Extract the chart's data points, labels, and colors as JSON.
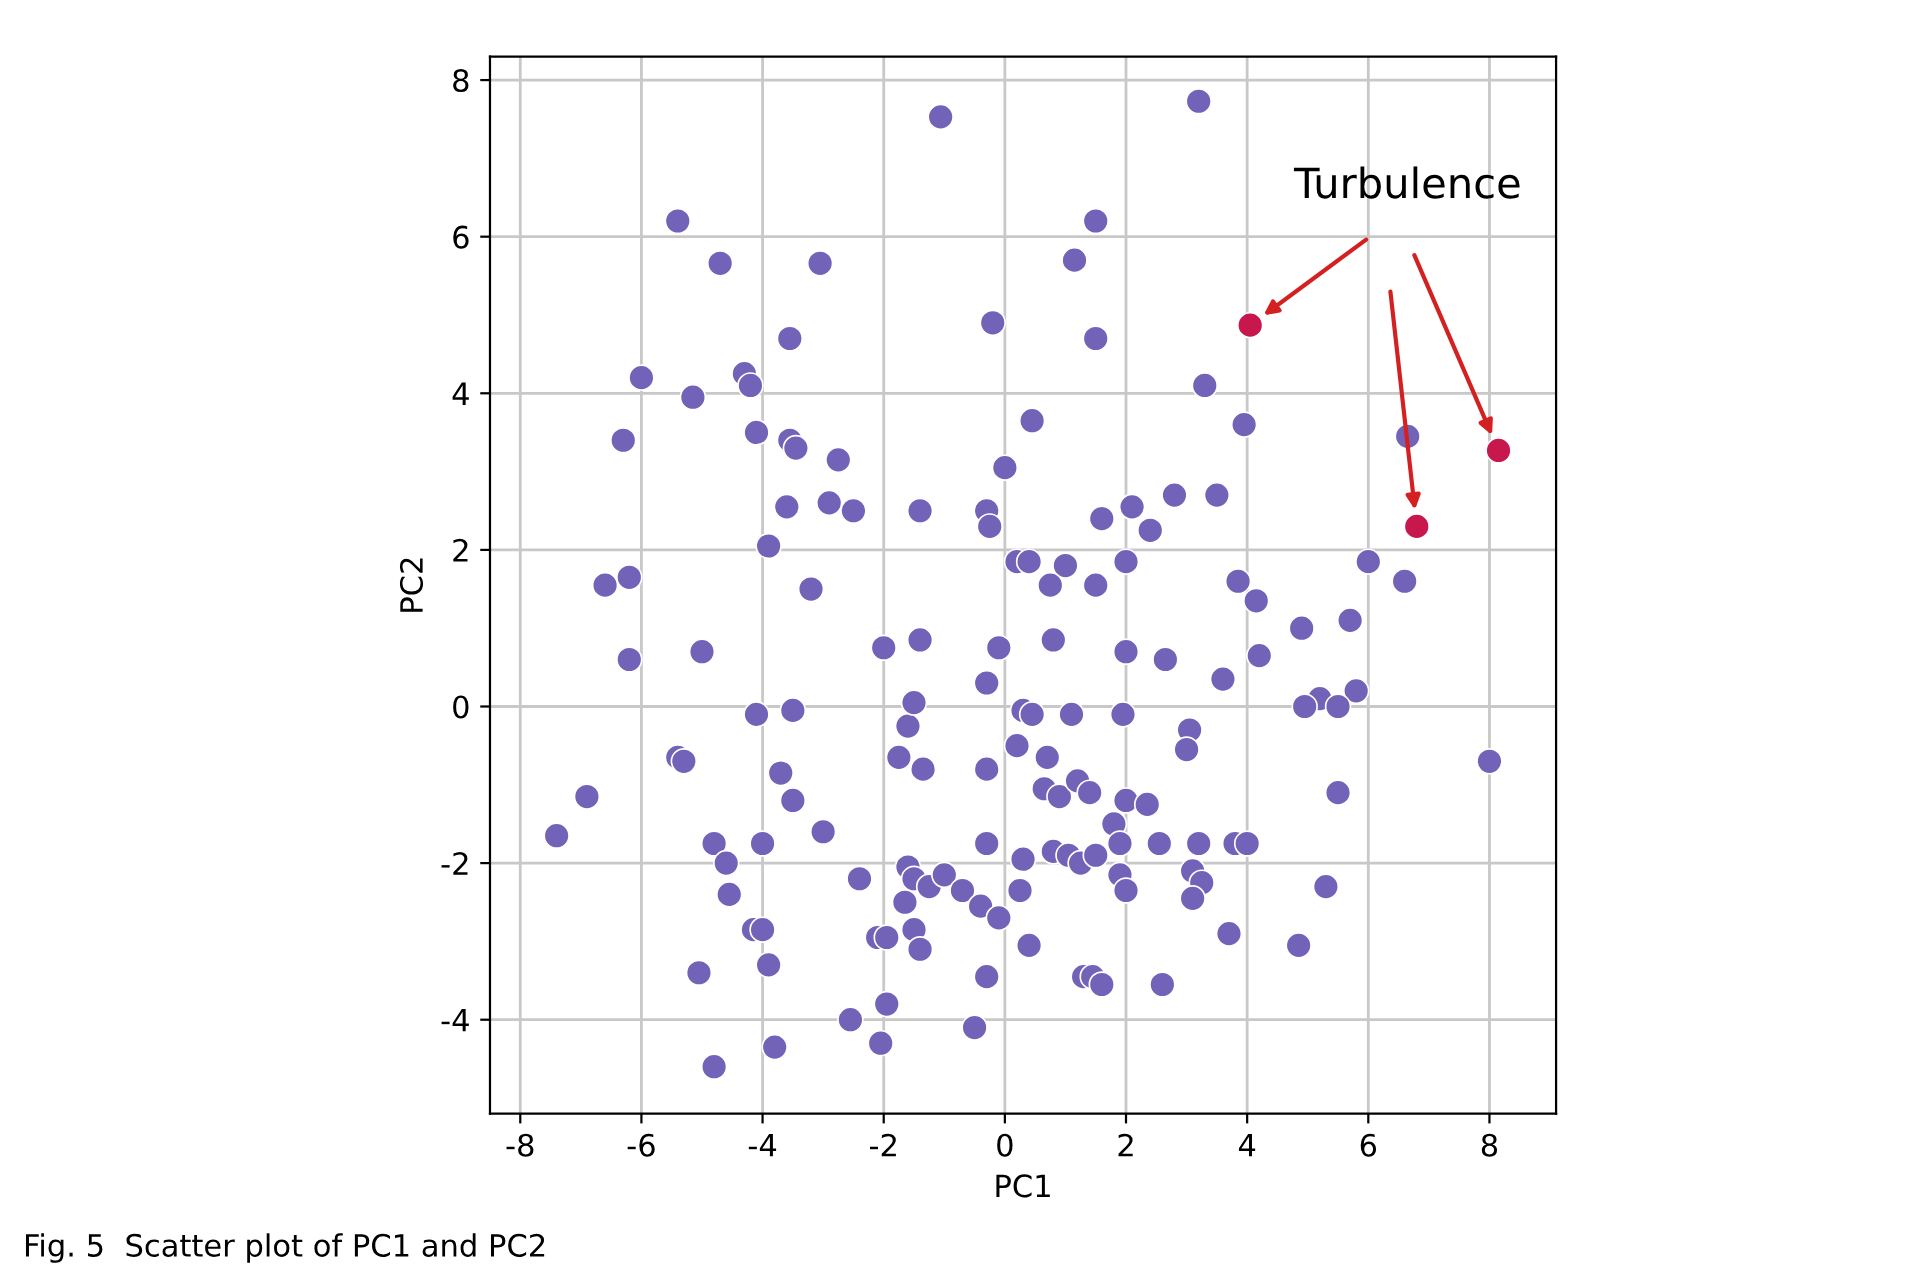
{
  "chart_data": {
    "type": "scatter",
    "xlabel": "PC1",
    "ylabel": "PC2",
    "xlim": [
      -8.5,
      9.1
    ],
    "ylim": [
      -5.2,
      8.3
    ],
    "xticks": [
      -8,
      -6,
      -4,
      -2,
      0,
      2,
      4,
      6,
      8
    ],
    "yticks": [
      -4,
      -2,
      0,
      2,
      4,
      6,
      8
    ],
    "grid": true,
    "legend": false,
    "marker": "circle",
    "annotations": [
      "Turbulence",
      "Fig. 5  Scatter plot of PC1 and PC2"
    ],
    "series": [
      {
        "color": "#7262b8",
        "x": [
          -1.06,
          3.2,
          -5.4,
          -4.7,
          -3.05,
          1.15,
          1.5,
          -0.2,
          1.5,
          -3.55,
          3.3,
          -6.0,
          -4.3,
          -4.2,
          -5.15,
          3.95,
          0.45,
          6.65,
          -6.3,
          -4.1,
          -3.55,
          -3.45,
          -2.75,
          0.0,
          3.5,
          2.8,
          -2.9,
          -2.5,
          -3.6,
          -1.4,
          -0.3,
          -0.25,
          2.1,
          2.4,
          1.6,
          -3.9,
          0.2,
          0.4,
          1.0,
          2.0,
          1.5,
          0.75,
          3.85,
          6.0,
          6.6,
          -6.6,
          -6.2,
          -3.2,
          4.15,
          5.7,
          4.9,
          -2.0,
          -1.4,
          -0.1,
          -6.2,
          -5.0,
          0.8,
          2.0,
          2.65,
          4.2,
          3.6,
          5.8,
          5.2,
          4.95,
          5.5,
          -1.6,
          -1.5,
          -0.3,
          -4.1,
          -3.5,
          0.3,
          0.45,
          1.1,
          1.95,
          -5.4,
          -5.3,
          -1.75,
          -1.35,
          -0.3,
          0.2,
          0.7,
          3.05,
          3.0,
          -3.7,
          8.0,
          -3.5,
          0.65,
          0.9,
          1.2,
          1.4,
          1.8,
          1.9,
          2.0,
          2.35,
          2.55,
          5.5,
          -4.8,
          -4.6,
          -4.0,
          -3.0,
          -1.6,
          -1.5,
          -1.25,
          -1.0,
          -0.3,
          -0.7,
          0.3,
          0.8,
          1.05,
          1.25,
          1.5,
          1.9,
          3.2,
          3.8,
          4.0,
          3.1,
          3.25,
          -4.55,
          -2.4,
          -1.65,
          -0.4,
          0.25,
          2.0,
          3.1,
          5.3,
          -4.15,
          -4.0,
          -2.1,
          -1.95,
          -1.5,
          -1.4,
          -0.1,
          0.4,
          3.7,
          4.85,
          -3.9,
          -5.05,
          -0.3,
          1.3,
          1.45,
          1.6,
          2.6,
          -1.95,
          -2.55,
          -0.5,
          -3.8,
          -2.05,
          -4.8,
          -7.4,
          -6.9
        ],
        "values": [
          7.53,
          7.73,
          6.2,
          5.66,
          5.66,
          5.7,
          6.2,
          4.9,
          4.7,
          4.7,
          4.1,
          4.2,
          4.25,
          4.1,
          3.95,
          3.6,
          3.65,
          3.45,
          3.4,
          3.5,
          3.4,
          3.3,
          3.15,
          3.05,
          2.7,
          2.7,
          2.6,
          2.5,
          2.55,
          2.5,
          2.5,
          2.3,
          2.55,
          2.25,
          2.4,
          2.05,
          1.85,
          1.85,
          1.8,
          1.85,
          1.55,
          1.55,
          1.6,
          1.85,
          1.6,
          1.55,
          1.65,
          1.5,
          1.35,
          1.1,
          1.0,
          0.75,
          0.85,
          0.75,
          0.6,
          0.7,
          0.85,
          0.7,
          0.6,
          0.65,
          0.35,
          0.2,
          0.1,
          0.0,
          0.0,
          -0.25,
          0.05,
          0.3,
          -0.1,
          -0.05,
          -0.05,
          -0.1,
          -0.1,
          -0.1,
          -0.65,
          -0.7,
          -0.65,
          -0.8,
          -0.8,
          -0.5,
          -0.65,
          -0.3,
          -0.55,
          -0.85,
          -0.7,
          -1.2,
          -1.05,
          -1.15,
          -0.95,
          -1.1,
          -1.5,
          -1.75,
          -1.2,
          -1.25,
          -1.75,
          -1.1,
          -1.75,
          -2.0,
          -1.75,
          -1.6,
          -2.05,
          -2.2,
          -2.3,
          -2.15,
          -1.75,
          -2.35,
          -1.95,
          -1.85,
          -1.9,
          -2.0,
          -1.9,
          -2.15,
          -1.75,
          -1.75,
          -1.75,
          -2.1,
          -2.25,
          -2.4,
          -2.2,
          -2.5,
          -2.55,
          -2.35,
          -2.35,
          -2.45,
          -2.3,
          -2.85,
          -2.85,
          -2.95,
          -2.95,
          -2.85,
          -3.1,
          -2.7,
          -3.05,
          -2.9,
          -3.05,
          -3.3,
          -3.4,
          -3.45,
          -3.45,
          -3.45,
          -3.55,
          -3.55,
          -3.8,
          -4.0,
          -4.1,
          -4.35,
          -4.3,
          -4.6,
          -1.65,
          -1.15
        ]
      },
      {
        "color": "#c8174d",
        "x": [
          4.05,
          8.15,
          6.8
        ],
        "values": [
          4.87,
          3.27,
          2.3
        ]
      }
    ]
  }
}
